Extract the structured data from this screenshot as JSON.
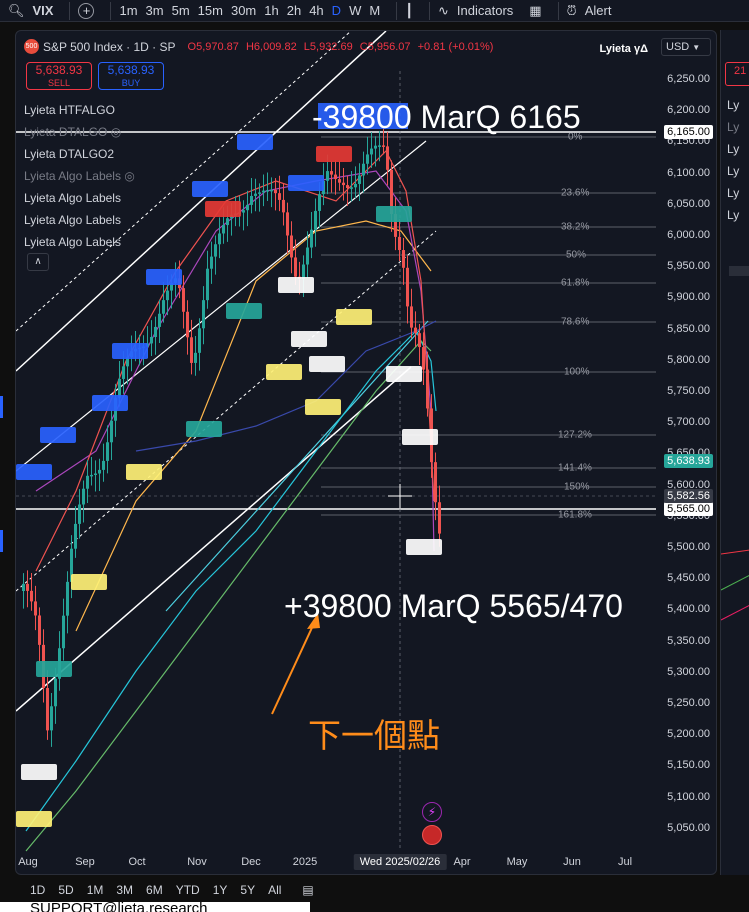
{
  "toolbar": {
    "symbol": "VIX",
    "intervals": [
      "1m",
      "3m",
      "5m",
      "15m",
      "30m",
      "1h",
      "2h",
      "4h",
      "D",
      "W",
      "M"
    ],
    "active_interval": "D",
    "indicators_label": "Indicators",
    "alert_label": "Alert"
  },
  "header": {
    "title": "S&P 500 Index · 1D · SP",
    "logo_text": "500",
    "open": "O5,970.87",
    "high": "H6,009.82",
    "low": "L5,932.69",
    "close": "C5,956.07",
    "change": "+0.81 (+0.01%)"
  },
  "trade": {
    "sell_price": "5,638.93",
    "sell_label": "SELL",
    "buy_price": "5,638.93",
    "buy_label": "BUY"
  },
  "indicators": [
    {
      "label": "Lyieta HTFALGO",
      "dim": false
    },
    {
      "label": "Lyieta DTALGO",
      "dim": true
    },
    {
      "label": "Lyieta DTALGO2",
      "dim": false
    },
    {
      "label": "Lyieta Algo Labels",
      "dim": true
    },
    {
      "label": "Lyieta Algo Labels",
      "dim": false
    },
    {
      "label": "Lyieta Algo Labels",
      "dim": false
    },
    {
      "label": "Lyieta Algo Labels",
      "dim": false
    }
  ],
  "brand_label": "Lyieta γΔ",
  "currency": "USD",
  "price_axis": {
    "ticks": [
      "6,250.00",
      "6,200.00",
      "6,150.00",
      "6,100.00",
      "6,050.00",
      "6,000.00",
      "5,950.00",
      "5,900.00",
      "5,850.00",
      "5,800.00",
      "5,750.00",
      "5,700.00",
      "5,650.00",
      "5,600.00",
      "5,550.00",
      "5,500.00",
      "5,450.00",
      "5,400.00",
      "5,350.00",
      "5,300.00",
      "5,250.00",
      "5,200.00",
      "5,150.00",
      "5,100.00",
      "5,050.00"
    ],
    "tag_top": "6,165.00",
    "tag_last": "5,638.93",
    "tag_cursor": "5,582.56",
    "tag_under": "5,565.00"
  },
  "time_axis": {
    "labels": [
      "Aug",
      "Sep",
      "Oct",
      "Nov",
      "Dec",
      "2025",
      "Apr",
      "May",
      "Jun",
      "Jul"
    ],
    "cursor": "Wed 2025/02/26"
  },
  "fib_levels": [
    "0%",
    "23.6%",
    "38.2%",
    "50%",
    "61.8%",
    "78.6%",
    "100%",
    "127.2%",
    "141.4%",
    "150%",
    "161.8%"
  ],
  "annotations": {
    "top_target": "-39800 MarQ 6165",
    "bottom_target": "+39800 MarQ 5565/470",
    "chinese_note": "下一個點"
  },
  "ranges": [
    "1D",
    "5D",
    "1M",
    "3M",
    "6M",
    "YTD",
    "1Y",
    "5Y",
    "All"
  ],
  "support_text": "SUPPORT@lieta.research",
  "right_panel": {
    "price_tag": "21",
    "items": [
      "Ly",
      "Ly",
      "Ly",
      "Ly",
      "Ly",
      "Ly"
    ]
  },
  "colors": {
    "accent": "#2962ff",
    "sell": "#f23645",
    "last_price": "#26a69a",
    "annotation_arrow": "#ff8c1a"
  }
}
